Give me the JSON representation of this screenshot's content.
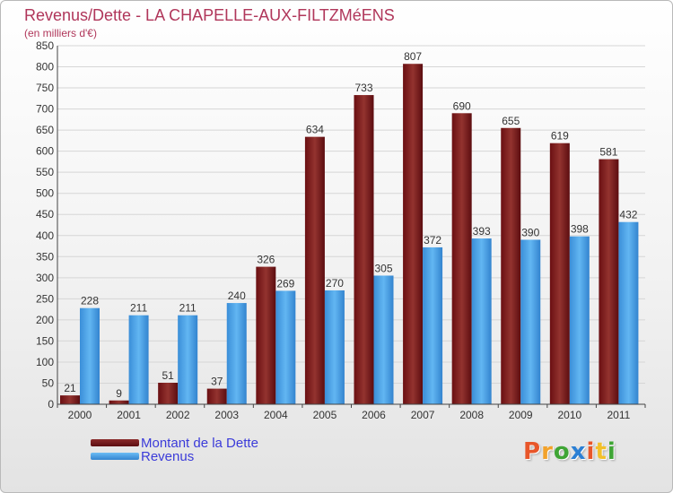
{
  "header": {
    "title": "Revenus/Dette - LA CHAPELLE-AUX-FILTZMéENS",
    "subtitle": "(en milliers d'€)"
  },
  "colors": {
    "dette": "#7a1a1a",
    "revenus": "#4aa3e8",
    "title": "#b0365a",
    "legend_text": "#3b3bd9"
  },
  "legend": {
    "items": [
      {
        "label": "Montant de la Dette",
        "color": "#7a1a1a"
      },
      {
        "label": "Revenus",
        "color": "#4aa3e8"
      }
    ]
  },
  "logo": {
    "letters": [
      "P",
      "r",
      "o",
      "x",
      "i",
      "t",
      "i"
    ],
    "colors": [
      "#e8562a",
      "#f2a22b",
      "#3fa535",
      "#2b7fd4",
      "#e8562a",
      "#f2c02b",
      "#3fa535"
    ]
  },
  "chart_data": {
    "type": "bar",
    "categories": [
      "2000",
      "2001",
      "2002",
      "2003",
      "2004",
      "2005",
      "2006",
      "2007",
      "2008",
      "2009",
      "2010",
      "2011"
    ],
    "series": [
      {
        "name": "Montant de la Dette",
        "values": [
          21,
          9,
          51,
          37,
          326,
          634,
          733,
          807,
          690,
          655,
          619,
          581
        ]
      },
      {
        "name": "Revenus",
        "values": [
          228,
          211,
          211,
          240,
          269,
          270,
          305,
          372,
          393,
          390,
          398,
          432
        ]
      }
    ],
    "yticks": [
      0,
      50,
      100,
      150,
      200,
      250,
      300,
      350,
      400,
      450,
      500,
      550,
      600,
      650,
      700,
      750,
      800,
      850
    ],
    "ylim": [
      0,
      850
    ],
    "grid": true,
    "legend_position": "bottom-left",
    "title": "Revenus/Dette - LA CHAPELLE-AUX-FILTZMéENS",
    "subtitle": "(en milliers d'€)"
  }
}
